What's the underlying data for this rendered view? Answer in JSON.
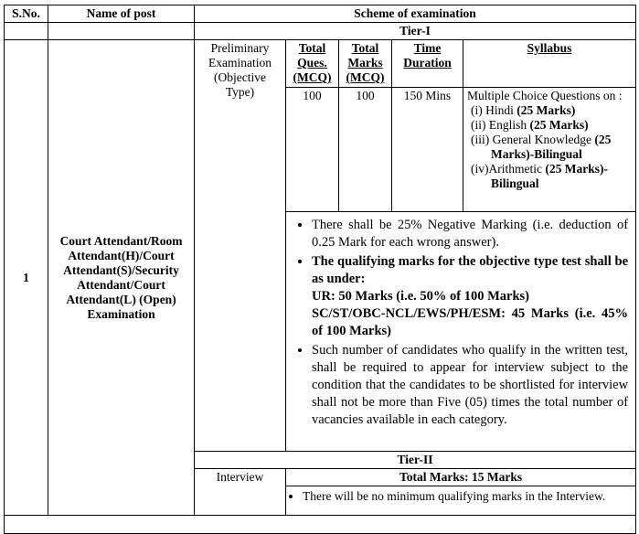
{
  "header": {
    "sno": "S.No.",
    "post": "Name of post",
    "scheme": "Scheme of examination"
  },
  "tier1": {
    "title": "Tier-I",
    "stage": "Preliminary Examination (Objective Type)",
    "col_ques": "Total Ques. (MCQ)",
    "col_marks": "Total Marks (MCQ)",
    "col_time": "Time Duration",
    "col_syllabus": "Syllabus",
    "ques": "100",
    "marks": "100",
    "time": "150 Mins",
    "syllabus_intro": "Multiple Choice Questions on :",
    "syllabus_items": [
      {
        "num": "(i)",
        "subject": "Hindi",
        "marks": "(25 Marks)"
      },
      {
        "num": "(ii)",
        "subject": "English",
        "marks": "(25 Marks)"
      },
      {
        "num": "(iii)",
        "subject": "General Knowledge",
        "marks": "(25 Marks)-Bilingual"
      },
      {
        "num": "(iv)",
        "subject": "Arithmetic",
        "marks": "(25 Marks)-Bilingual"
      }
    ],
    "bullet1": "There shall be 25% Negative Marking (i.e. deduction of 0.25 Mark for each wrong answer).",
    "bullet2_title": "The qualifying marks for the objective type test shall be as under:",
    "bullet2_ur": "UR: 50 Marks (i.e. 50% of 100 Marks)",
    "bullet2_sc": "SC/ST/OBC-NCL/EWS/PH/ESM: 45 Marks (i.e. 45% of 100 Marks)",
    "bullet3": "Such number of candidates who qualify in the written test, shall be required to appear for interview subject to the condition that the candidates to be shortlisted for interview shall not be more than Five (05) times the total number of vacancies available in each category."
  },
  "row": {
    "sno": "1",
    "post": "Court Attendant/Room Attendant(H)/Court Attendant(S)/Security Attendant/Court Attendant(L) (Open) Examination"
  },
  "tier2": {
    "title": "Tier-II",
    "stage": "Interview",
    "total": "Total Marks: 15 Marks",
    "bullet": "There will be no minimum qualifying marks in the Interview."
  }
}
